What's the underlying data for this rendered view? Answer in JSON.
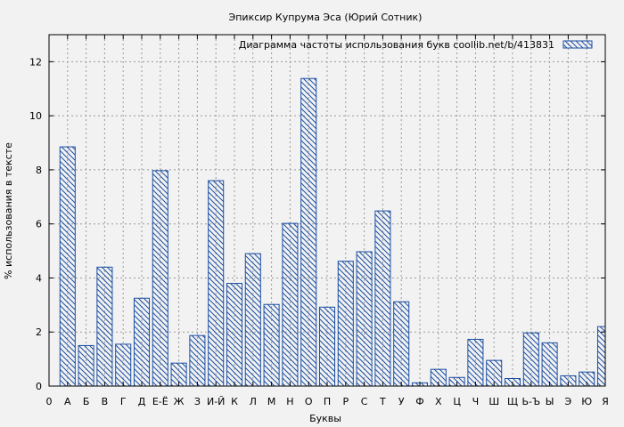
{
  "chart_data": {
    "type": "bar",
    "title": "Эпиксир Купрума Эса (Юрий Сотник)",
    "xlabel": "Буквы",
    "ylabel": "% использования в тексте",
    "legend": {
      "label": "Диаграмма частоты использования букв  coollib.net/b/413831",
      "position": "top-right"
    },
    "ylim": [
      0,
      13
    ],
    "yticks": [
      0,
      2,
      4,
      6,
      8,
      10,
      12
    ],
    "grid": true,
    "x_tick_labels": [
      "0",
      "А",
      "Б",
      "В",
      "Г",
      "Д",
      "Е-Ё",
      "Ж",
      "З",
      "И-Й",
      "К",
      "Л",
      "М",
      "Н",
      "О",
      "П",
      "Р",
      "С",
      "Т",
      "У",
      "Ф",
      "Х",
      "Ц",
      "Ч",
      "Ш",
      "Щ",
      "Ь-Ъ",
      "Ы",
      "Э",
      "Ю",
      "Я"
    ],
    "categories": [
      "А",
      "Б",
      "В",
      "Г",
      "Д",
      "Е-Ё",
      "Ж",
      "З",
      "И-Й",
      "К",
      "Л",
      "М",
      "Н",
      "О",
      "П",
      "Р",
      "С",
      "Т",
      "У",
      "Ф",
      "Х",
      "Ц",
      "Ч",
      "Ш",
      "Щ",
      "Ь-Ъ",
      "Ы",
      "Э",
      "Ю",
      "Я"
    ],
    "values": [
      8.85,
      1.5,
      4.4,
      1.55,
      3.25,
      7.97,
      0.85,
      1.87,
      7.6,
      3.8,
      4.9,
      3.02,
      6.02,
      11.38,
      2.92,
      4.62,
      4.97,
      6.48,
      3.12,
      0.12,
      0.62,
      0.32,
      1.73,
      0.95,
      0.28,
      1.97,
      1.6,
      0.38,
      0.52,
      2.2
    ]
  },
  "colors": {
    "bar": "#1c4fa3",
    "background": "#f2f2f2",
    "grid": "#999999"
  }
}
